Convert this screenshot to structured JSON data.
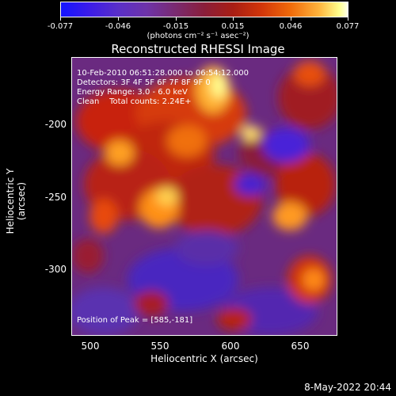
{
  "colorbar": {
    "ticks": [
      "-0.077",
      "-0.046",
      "-0.015",
      "0.015",
      "0.046",
      "0.077"
    ],
    "units": "(photons cm⁻² s⁻¹ asec⁻²)"
  },
  "title": "Reconstructed RHESSI Image",
  "info": {
    "line1": "10-Feb-2010 06:51:28.000 to 06:54:12.000",
    "line2": "Detectors: 3F 4F 5F 6F 7F 8F 9F 0",
    "line3": "Energy Range: 3.0 - 6.0 keV",
    "line4": "Clean    Total counts: 2.24E+",
    "peak": "Position of Peak = [585,-181]"
  },
  "axes": {
    "xlabel": "Heliocentric X (arcsec)",
    "ylabel": "Heliocentric Y (arcsec)",
    "xticks": [
      "500",
      "550",
      "600",
      "650"
    ],
    "yticks": [
      "-200",
      "-250",
      "-300"
    ]
  },
  "datestamp": "8-May-2022 20:44"
}
